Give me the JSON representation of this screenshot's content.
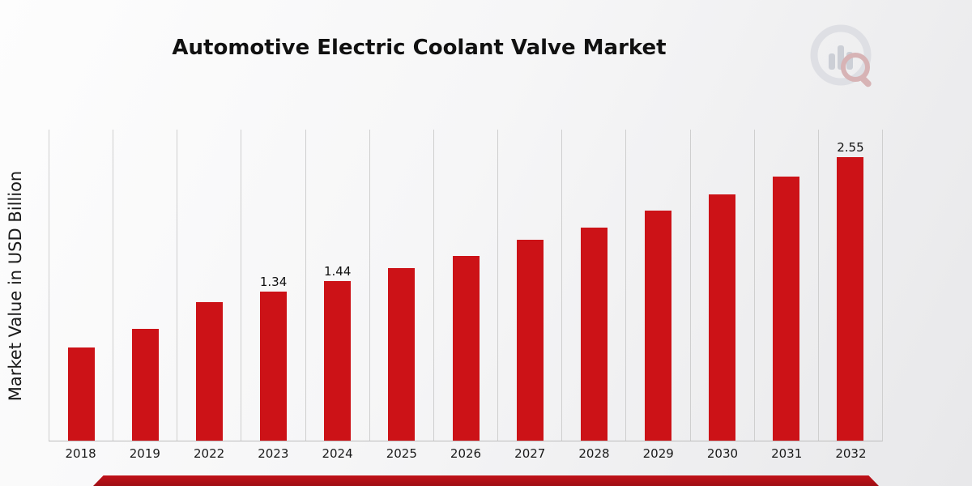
{
  "header": {
    "title": "Automotive Electric Coolant Valve Market"
  },
  "chart_data": {
    "type": "bar",
    "title": "Automotive Electric Coolant Valve Market",
    "xlabel": "",
    "ylabel": "Market Value in USD Billion",
    "categories": [
      "2018",
      "2019",
      "2022",
      "2023",
      "2024",
      "2025",
      "2026",
      "2027",
      "2028",
      "2029",
      "2030",
      "2031",
      "2032"
    ],
    "values": [
      0.84,
      1.01,
      1.25,
      1.34,
      1.44,
      1.55,
      1.66,
      1.81,
      1.92,
      2.07,
      2.22,
      2.38,
      2.55
    ],
    "data_labels": {
      "2023": "1.34",
      "2024": "1.44",
      "2032": "2.55"
    },
    "ylim": [
      0,
      2.8
    ],
    "grid": "vertical-only",
    "legend": "none"
  },
  "colors": {
    "bar": "#cc1217",
    "ribbon_dark": "#9f0e14",
    "ribbon": "#c01219",
    "grid": "#cfcfcf",
    "text": "#111111"
  },
  "logo": {
    "icon": "bar-chart-magnifier-logo"
  }
}
